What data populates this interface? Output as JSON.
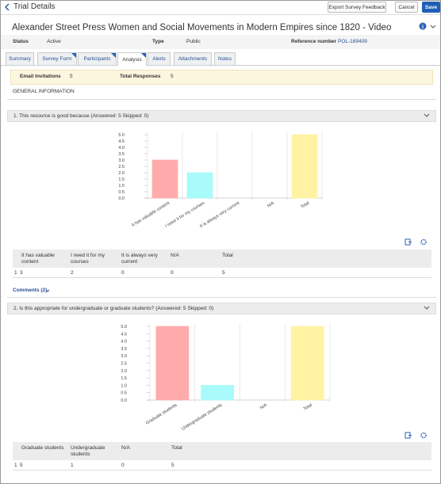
{
  "header": {
    "back_title": "Trial Details",
    "buttons": [
      "Export Survey Feedback",
      "Cancel",
      "Save"
    ]
  },
  "record": {
    "title": "Alexander Street Press Women and Social Movements in Modern Empires since 1820 - Video",
    "fields": [
      {
        "label": "Status",
        "value": "Active"
      },
      {
        "label": "Type",
        "value": "Public"
      },
      {
        "label": "Reference number",
        "value": "POL-189409"
      }
    ]
  },
  "tabs": [
    "Summary",
    "Survey Form",
    "Participants",
    "Analysis",
    "Alerts",
    "Attachments",
    "Notes"
  ],
  "active_tab": "Analysis",
  "summary": [
    {
      "label": "Email Invitations",
      "value": 5
    },
    {
      "label": "Total Responses",
      "value": 5
    }
  ],
  "section_title": "GENERAL INFORMATION",
  "questions": [
    {
      "heading": "1. This resource is good because (Answered: 5 Skipped: 0)",
      "chart": {
        "type": "bar",
        "categories": [
          "It has valuable content",
          "I need it for my courses",
          "It is always very current",
          "N/A",
          "Total"
        ],
        "values": [
          3,
          2,
          0,
          0,
          5
        ],
        "colors": [
          "#ffabab",
          "#a9fafa",
          "#b3b3f5",
          "#cccccc",
          "#fff2a3"
        ],
        "ylim": [
          0,
          5
        ],
        "yticks": [
          {
            "value": 0,
            "label": "0.0"
          },
          {
            "value": 0.5,
            "label": "0.5"
          },
          {
            "value": 1,
            "label": "1.0"
          },
          {
            "value": 1.5,
            "label": "1.5"
          },
          {
            "value": 2,
            "label": "2.0"
          },
          {
            "value": 2.5,
            "label": "2.5"
          },
          {
            "value": 3,
            "label": "3.0"
          },
          {
            "value": 3.5,
            "label": "3.5"
          },
          {
            "value": 4,
            "label": "4.0"
          },
          {
            "value": 4.5,
            "label": "4.5"
          },
          {
            "value": 5,
            "label": "5.0"
          }
        ]
      },
      "table": {
        "headers": [
          "It has valuable content",
          "I need it for my courses",
          "It is always very current",
          "N/A",
          "Total"
        ],
        "rows": [
          {
            "label": "1",
            "cells": [
              3,
              2,
              0,
              0,
              5
            ]
          }
        ]
      },
      "comments": "Comments (2)"
    },
    {
      "heading": "2. Is this appropriate for undergraduate or graduate students? (Answered: 5 Skipped: 0)",
      "chart": {
        "type": "bar",
        "categories": [
          "Graduate students",
          "Undergraduate students",
          "N/A",
          "Total"
        ],
        "values": [
          5,
          1,
          0,
          5
        ],
        "colors": [
          "#ffabab",
          "#a9fafa",
          "#cccccc",
          "#fff2a3"
        ],
        "ylim": [
          0,
          5
        ],
        "yticks": [
          {
            "value": 0,
            "label": "0.0"
          },
          {
            "value": 0.5,
            "label": "0.5"
          },
          {
            "value": 1,
            "label": "1.0"
          },
          {
            "value": 1.5,
            "label": "1.5"
          },
          {
            "value": 2,
            "label": "2.0"
          },
          {
            "value": 2.5,
            "label": "2.5"
          },
          {
            "value": 3,
            "label": "3.0"
          },
          {
            "value": 3.5,
            "label": "3.5"
          },
          {
            "value": 4,
            "label": "4.0"
          },
          {
            "value": 4.5,
            "label": "4.5"
          },
          {
            "value": 5,
            "label": "5.0"
          }
        ]
      },
      "table": {
        "headers": [
          "Graduate students",
          "Undergraduate students",
          "N/A",
          "Total"
        ],
        "rows": [
          {
            "label": "1",
            "cells": [
              5,
              1,
              0,
              5
            ]
          }
        ]
      }
    }
  ]
}
